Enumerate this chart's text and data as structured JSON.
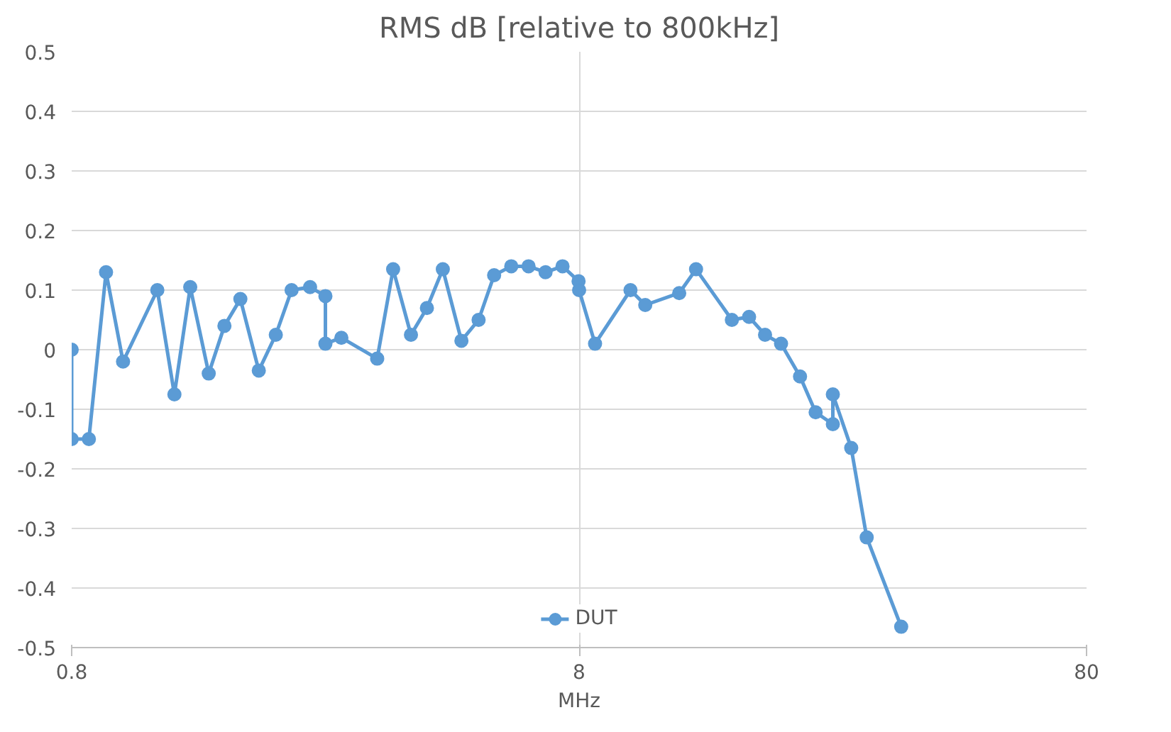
{
  "chart_data": {
    "type": "line",
    "title": "RMS dB [relative to 800kHz]",
    "xlabel": "MHz",
    "x": [
      0.8,
      0.8,
      0.865,
      0.935,
      1.01,
      1.18,
      1.275,
      1.37,
      1.49,
      1.6,
      1.72,
      1.87,
      2.02,
      2.17,
      2.36,
      2.53,
      2.53,
      2.72,
      3.2,
      3.44,
      3.73,
      4.01,
      4.31,
      4.69,
      5.07,
      5.44,
      5.88,
      6.36,
      6.87,
      7.42,
      7.98,
      8.0,
      8.6,
      10.1,
      10.8,
      12.6,
      13.6,
      16.0,
      17.3,
      18.6,
      20.0,
      21.8,
      23.4,
      25.3,
      25.3,
      27.5,
      29.5,
      34.5
    ],
    "series": [
      {
        "name": "DUT",
        "color": "#5b9bd5",
        "values": [
          0,
          -0.15,
          -0.15,
          0.13,
          -0.02,
          0.1,
          -0.075,
          0.105,
          -0.04,
          0.04,
          0.085,
          -0.035,
          0.025,
          0.1,
          0.105,
          0.09,
          0.01,
          0.02,
          -0.015,
          0.135,
          0.025,
          0.07,
          0.135,
          0.015,
          0.05,
          0.125,
          0.14,
          0.14,
          0.13,
          0.14,
          0.115,
          0.1,
          0.01,
          0.1,
          0.075,
          0.095,
          0.135,
          0.05,
          0.055,
          0.025,
          0.01,
          -0.045,
          -0.105,
          -0.125,
          -0.075,
          -0.165,
          -0.315,
          -0.465
        ]
      }
    ],
    "log": "x",
    "xlim": [
      0.8,
      80
    ],
    "xticks": [
      0.8,
      8,
      80
    ],
    "ylim": [
      -0.5,
      0.5
    ],
    "yticks": [
      {
        "value": -0.5,
        "label": "-0.5"
      },
      {
        "value": -0.4,
        "label": "-0.4"
      },
      {
        "value": -0.3,
        "label": "-0.3"
      },
      {
        "value": -0.2,
        "label": "-0.2"
      },
      {
        "value": -0.1,
        "label": "-0.1"
      },
      {
        "value": 0,
        "label": "0"
      },
      {
        "value": 0.1,
        "label": "0.1"
      },
      {
        "value": 0.2,
        "label": "0.2"
      },
      {
        "value": 0.3,
        "label": "0.3"
      },
      {
        "value": 0.4,
        "label": "0.4"
      },
      {
        "value": 0.5,
        "label": "0.5"
      }
    ],
    "grid": true,
    "legend": "bottom",
    "marker": "circle",
    "line_style": "solid"
  }
}
